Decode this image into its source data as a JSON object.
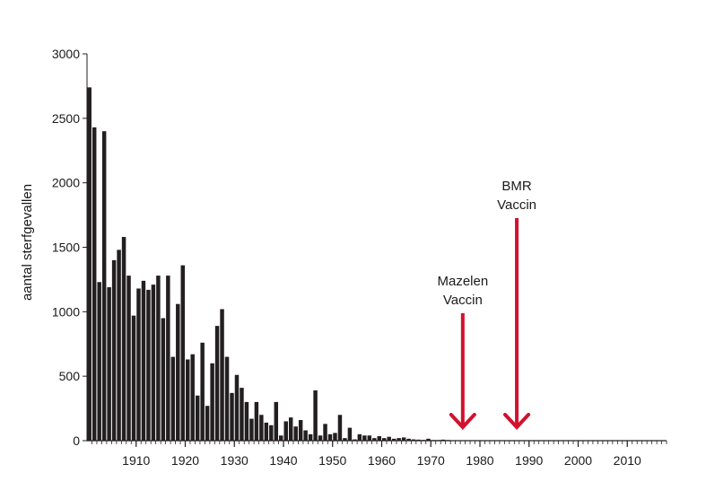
{
  "chart_data": {
    "type": "bar",
    "title": "",
    "xlabel": "",
    "ylabel": "aantal sterfgevallen",
    "xlim": [
      1900,
      2018
    ],
    "ylim": [
      0,
      3000
    ],
    "yticks": [
      0,
      500,
      1000,
      1500,
      2000,
      2500,
      3000
    ],
    "xticks": [
      1910,
      1920,
      1930,
      1940,
      1950,
      1960,
      1970,
      1980,
      1990,
      2000,
      2010
    ],
    "grid": false,
    "bar_color": "#231f20",
    "annotation_color": "#d2122e",
    "x": [
      1901,
      1902,
      1903,
      1904,
      1905,
      1906,
      1907,
      1908,
      1909,
      1910,
      1911,
      1912,
      1913,
      1914,
      1915,
      1916,
      1917,
      1918,
      1919,
      1920,
      1921,
      1922,
      1923,
      1924,
      1925,
      1926,
      1927,
      1928,
      1929,
      1930,
      1931,
      1932,
      1933,
      1934,
      1935,
      1936,
      1937,
      1938,
      1939,
      1940,
      1941,
      1942,
      1943,
      1944,
      1945,
      1946,
      1947,
      1948,
      1949,
      1950,
      1951,
      1952,
      1953,
      1954,
      1955,
      1956,
      1957,
      1958,
      1959,
      1960,
      1961,
      1962,
      1963,
      1964,
      1965,
      1966,
      1967,
      1968,
      1969,
      1970,
      1971,
      1972,
      1973,
      1974,
      1975,
      1976,
      1977,
      1978,
      1979,
      1980,
      1981,
      1982,
      1983,
      1984,
      1985
    ],
    "values": [
      2740,
      2430,
      1230,
      2400,
      1190,
      1400,
      1480,
      1580,
      1280,
      970,
      1180,
      1240,
      1170,
      1210,
      1280,
      950,
      1280,
      650,
      1060,
      1360,
      630,
      670,
      350,
      760,
      270,
      600,
      890,
      1020,
      650,
      370,
      510,
      410,
      300,
      170,
      300,
      200,
      140,
      120,
      300,
      40,
      150,
      180,
      110,
      160,
      80,
      50,
      390,
      40,
      130,
      50,
      60,
      200,
      20,
      100,
      10,
      50,
      40,
      40,
      20,
      35,
      20,
      30,
      15,
      20,
      25,
      15,
      10,
      8,
      6,
      15,
      5,
      5,
      8,
      5,
      3,
      2,
      2,
      2,
      1,
      1,
      1,
      1,
      1,
      1,
      1
    ],
    "annotations": [
      {
        "lines": [
          "Mazelen",
          "Vaccin"
        ],
        "year": 1976
      },
      {
        "lines": [
          "BMR",
          "Vaccin"
        ],
        "year": 1987
      }
    ]
  }
}
